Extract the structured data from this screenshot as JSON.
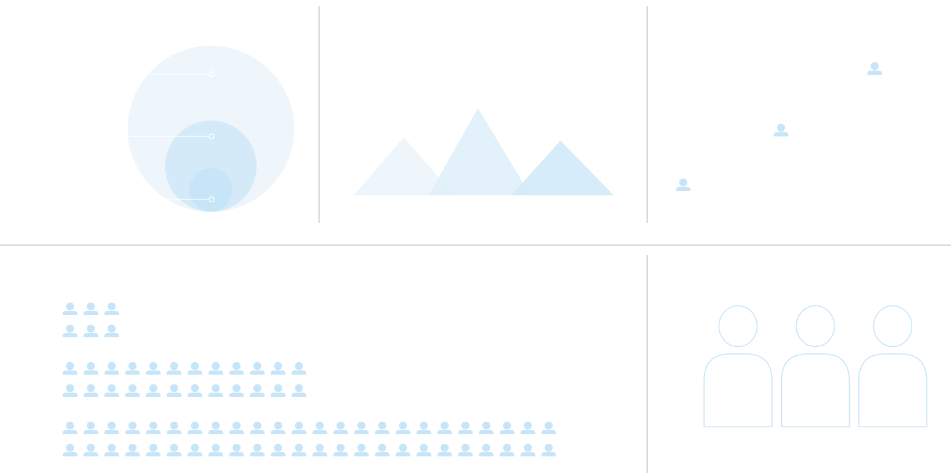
{
  "colors": {
    "divider": "#d9d9d9",
    "circle_outer": "#eef6fc",
    "circle_middle": "#d4eaf8",
    "circle_inner": "#c6e5f8",
    "mountain_left": "#eef6fc",
    "mountain_center": "#e0f0fa",
    "mountain_right": "#d4ebf8",
    "person_fill": "#c6e5f8",
    "person_outline": "#c2e2f4",
    "leader_line": "#ffffff"
  },
  "panels": {
    "nested_circles": {
      "circle_count": 3,
      "marker_count": 3
    },
    "mountains": {
      "peak_count": 3
    },
    "ascending_people": {
      "icon_name": "person-icon",
      "count": 3
    },
    "people_grid": {
      "icon_name": "person-icon",
      "groups": [
        {
          "columns": 3,
          "rows": 2
        },
        {
          "columns": 12,
          "rows": 2
        },
        {
          "columns": 24,
          "rows": 2
        }
      ]
    },
    "large_people": {
      "icon_name": "person-outline-icon",
      "count": 3
    }
  }
}
